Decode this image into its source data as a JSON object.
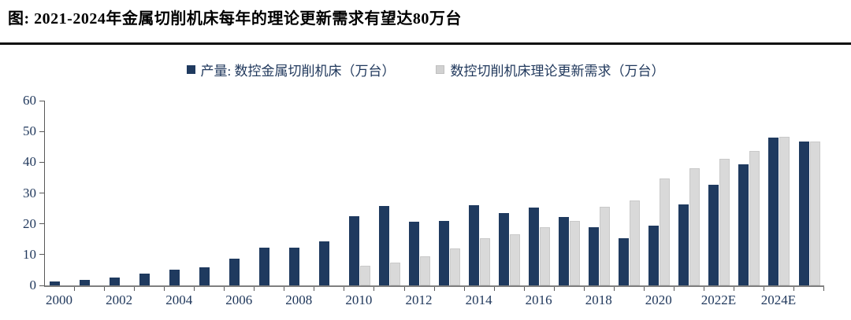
{
  "page": {
    "title": "图:  2021-2024年金属切削机床每年的理论更新需求有望达80万台"
  },
  "legend": [
    {
      "label": "产量: 数控金属切削机床（万台）",
      "color": "#1f3a5f"
    },
    {
      "label": "数控切削机床理论更新需求（万台）",
      "color": "#d9d9d9"
    }
  ],
  "colors": {
    "production_bar": "#1f3a5f",
    "demand_bar": "#d9d9d9",
    "axis_line": "#7f7f7f",
    "axis_text": "#20385c",
    "title_text": "#000000"
  },
  "chart_data": {
    "type": "bar",
    "title": "图:  2021-2024年金属切削机床每年的理论更新需求有望达80万台",
    "categories": [
      "2000",
      "2001",
      "2002",
      "2003",
      "2004",
      "2005",
      "2006",
      "2007",
      "2008",
      "2009",
      "2010",
      "2011",
      "2012",
      "2013",
      "2014",
      "2015",
      "2016",
      "2017",
      "2018",
      "2019",
      "2020",
      "2021",
      "2022E",
      "2023E",
      "2024E",
      "2025E"
    ],
    "x_tick_labels": [
      "2000",
      "2002",
      "2004",
      "2006",
      "2008",
      "2010",
      "2012",
      "2014",
      "2016",
      "2018",
      "2020",
      "2022E",
      "2024E"
    ],
    "series": [
      {
        "name": "产量: 数控金属切削机床（万台）",
        "color": "#1f3a5f",
        "values": [
          1.4,
          1.8,
          2.6,
          3.8,
          5.2,
          6.0,
          8.6,
          12.2,
          12.2,
          14.4,
          22.4,
          25.7,
          20.7,
          21.0,
          26.0,
          23.4,
          25.2,
          22.2,
          19.0,
          15.4,
          19.3,
          26.3,
          32.6,
          39.3,
          48.1,
          46.8
        ]
      },
      {
        "name": "数控切削机床理论更新需求（万台）",
        "color": "#d9d9d9",
        "values": [
          null,
          null,
          null,
          null,
          null,
          null,
          null,
          null,
          null,
          null,
          6.5,
          7.5,
          9.5,
          12.0,
          15.3,
          16.5,
          19.0,
          21.0,
          25.5,
          27.5,
          34.8,
          38.0,
          41.0,
          43.6,
          48.2,
          46.8
        ]
      }
    ],
    "xlabel": "",
    "ylabel": "",
    "ylim": [
      0,
      60
    ],
    "ytick_step": 10,
    "grid": false,
    "legend_position": "top-center"
  }
}
